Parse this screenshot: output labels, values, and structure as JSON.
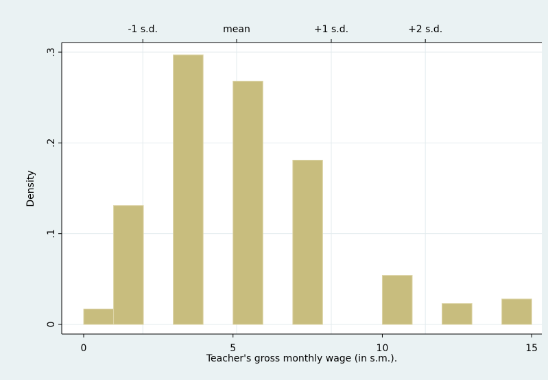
{
  "chart_data": {
    "type": "histogram",
    "xlabel": "Teacher's gross monthly wage (in s.m.).",
    "ylabel": "Density",
    "bins": [
      0,
      1,
      2,
      3,
      4,
      5,
      6,
      7,
      8,
      9,
      10,
      11,
      12,
      13,
      14,
      15
    ],
    "values": [
      0.017,
      0.131,
      0,
      0.297,
      0,
      0.268,
      0,
      0.181,
      0,
      0,
      0.054,
      0,
      0.023,
      0,
      0.028
    ],
    "color": "#c8bd7e",
    "xlim": [
      -0.735,
      15.34
    ],
    "ylim": [
      -0.0106,
      0.3106
    ],
    "xticks": [
      0,
      5,
      10,
      15
    ],
    "yticks": [
      {
        "value": 0,
        "label": "0"
      },
      {
        "value": 0.1,
        "label": ".1"
      },
      {
        "value": 0.2,
        "label": ".2"
      },
      {
        "value": 0.3,
        "label": ".3"
      }
    ],
    "x2ticks": [
      {
        "value": 1.98,
        "label": "-1 s.d."
      },
      {
        "value": 5.12,
        "label": "mean"
      },
      {
        "value": 8.29,
        "label": "+1 s.d."
      },
      {
        "value": 11.44,
        "label": "+2 s.d."
      }
    ],
    "grid": true
  }
}
